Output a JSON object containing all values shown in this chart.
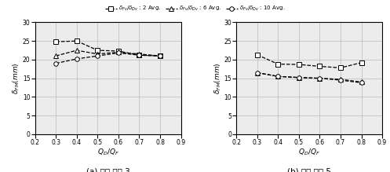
{
  "x": [
    0.3,
    0.4,
    0.5,
    0.6,
    0.7,
    0.8
  ],
  "panel_a": {
    "series_2": [
      24.8,
      25.0,
      22.5,
      22.3,
      21.2,
      21.0
    ],
    "series_6": [
      21.0,
      22.5,
      21.5,
      22.0,
      21.5,
      21.0
    ],
    "series_10": [
      19.0,
      20.2,
      21.0,
      21.8,
      21.2,
      21.0
    ]
  },
  "panel_b": {
    "series_2": [
      21.3,
      18.8,
      18.7,
      18.2,
      17.8,
      19.2
    ],
    "series_6": [
      16.5,
      15.5,
      15.2,
      15.0,
      14.7,
      14.0
    ],
    "series_10": [
      16.5,
      15.5,
      15.2,
      15.0,
      14.5,
      13.8
    ]
  },
  "xlabel": "$Q_D/Q_F$",
  "ylabel": "$\\delta_{FM}(mm)$",
  "xlim": [
    0.2,
    0.9
  ],
  "ylim": [
    0,
    30
  ],
  "yticks": [
    0,
    5,
    10,
    15,
    20,
    25,
    30
  ],
  "xticks": [
    0.2,
    0.3,
    0.4,
    0.5,
    0.6,
    0.7,
    0.8,
    0.9
  ],
  "label_a": "(a) 주기 비율 3",
  "label_b": "(b) 주기 비율 5",
  "legend_labels": [
    "$\\delta_{Fv}/\\delta_{Dv}$ : 2 Avg.",
    "$\\delta_{Fv}/\\delta_{Dv}$ : 6 Avg.",
    "$\\delta_{Fv}/\\delta_{Dv}$ : 10 Avg."
  ],
  "markers": [
    "s",
    "^",
    "o"
  ],
  "linestyle": "--",
  "markersize": 4,
  "linewidth": 0.9,
  "grid_color": "#bbbbbb",
  "bg_color": "#ececec",
  "fig_bg": "#ffffff"
}
